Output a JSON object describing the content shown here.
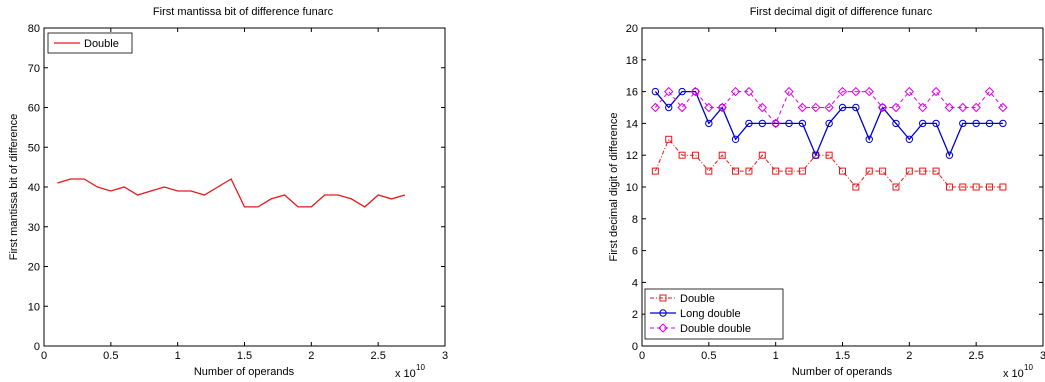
{
  "chart_data": [
    {
      "type": "line",
      "title": "First mantissa bit of difference funarc",
      "xlabel": "Number of operands",
      "ylabel": "First mantissa bit of difference",
      "x_multiplier": "x 10",
      "x_multiplier_exp": "10",
      "xlim": [
        0,
        3
      ],
      "ylim": [
        0,
        80
      ],
      "xticks": [
        0,
        0.5,
        1,
        1.5,
        2,
        2.5,
        3
      ],
      "xtick_labels": [
        "0",
        "0.5",
        "1",
        "1.5",
        "2",
        "2.5",
        "3"
      ],
      "yticks": [
        0,
        10,
        20,
        30,
        40,
        50,
        60,
        70,
        80
      ],
      "ytick_labels": [
        "0",
        "10",
        "20",
        "30",
        "40",
        "50",
        "60",
        "70",
        "80"
      ],
      "legend_position": "top-left",
      "x": [
        0.1,
        0.2,
        0.3,
        0.4,
        0.5,
        0.6,
        0.7,
        0.8,
        0.9,
        1.0,
        1.1,
        1.2,
        1.3,
        1.4,
        1.5,
        1.6,
        1.7,
        1.8,
        1.9,
        2.0,
        2.1,
        2.2,
        2.3,
        2.4,
        2.5,
        2.6,
        2.7
      ],
      "series": [
        {
          "name": "Double",
          "color": "#e31a1c",
          "style": "solid",
          "marker": "none",
          "values": [
            41,
            42,
            42,
            40,
            39,
            40,
            38,
            39,
            40,
            39,
            39,
            38,
            40,
            42,
            35,
            35,
            37,
            38,
            35,
            35,
            38,
            38,
            37,
            35,
            38,
            37,
            38
          ]
        }
      ]
    },
    {
      "type": "line",
      "title": "First decimal digit of difference funarc",
      "xlabel": "Number of operands",
      "ylabel": "First decimal digit of difference",
      "x_multiplier": "x 10",
      "x_multiplier_exp": "10",
      "xlim": [
        0,
        3
      ],
      "ylim": [
        0,
        20
      ],
      "xticks": [
        0,
        0.5,
        1,
        1.5,
        2,
        2.5,
        3
      ],
      "xtick_labels": [
        "0",
        "0.5",
        "1",
        "1.5",
        "2",
        "2.5",
        "3"
      ],
      "yticks": [
        0,
        2,
        4,
        6,
        8,
        10,
        12,
        14,
        16,
        18,
        20
      ],
      "ytick_labels": [
        "0",
        "2",
        "4",
        "6",
        "8",
        "10",
        "12",
        "14",
        "16",
        "18",
        "20"
      ],
      "legend_position": "bottom-left",
      "x": [
        0.1,
        0.2,
        0.3,
        0.4,
        0.5,
        0.6,
        0.7,
        0.8,
        0.9,
        1.0,
        1.1,
        1.2,
        1.3,
        1.4,
        1.5,
        1.6,
        1.7,
        1.8,
        1.9,
        2.0,
        2.1,
        2.2,
        2.3,
        2.4,
        2.5,
        2.6,
        2.7
      ],
      "series": [
        {
          "name": "Double",
          "color": "#e31a1c",
          "style": "dash-dot",
          "marker": "square",
          "values": [
            11,
            13,
            12,
            12,
            11,
            12,
            11,
            11,
            12,
            11,
            11,
            11,
            12,
            12,
            11,
            10,
            11,
            11,
            10,
            11,
            11,
            11,
            10,
            10,
            10,
            10,
            10
          ]
        },
        {
          "name": "Long double",
          "color": "#0000cc",
          "style": "solid",
          "marker": "circle",
          "values": [
            16,
            15,
            16,
            16,
            14,
            15,
            13,
            14,
            14,
            14,
            14,
            14,
            12,
            14,
            15,
            15,
            13,
            15,
            14,
            13,
            14,
            14,
            12,
            14,
            14,
            14,
            14
          ]
        },
        {
          "name": "Double double",
          "color": "#e600e6",
          "style": "dashed",
          "marker": "diamond",
          "values": [
            15,
            16,
            15,
            16,
            15,
            15,
            16,
            16,
            15,
            14,
            16,
            15,
            15,
            15,
            16,
            16,
            16,
            15,
            15,
            16,
            15,
            16,
            15,
            15,
            15,
            16,
            15
          ]
        }
      ]
    }
  ]
}
